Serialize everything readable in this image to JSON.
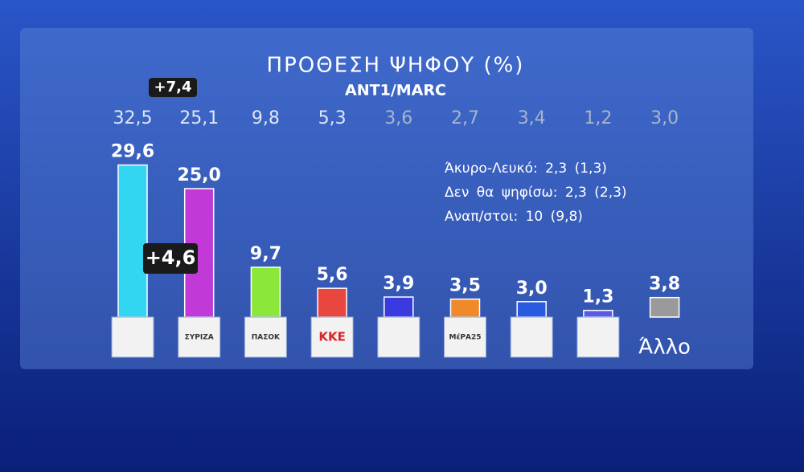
{
  "chart_data": {
    "type": "bar",
    "title": "ΠΡΟΘΕΣΗ ΨΗΦΟΥ (%)",
    "subtitle": "ANT1/MARC",
    "categories": [
      null,
      "ΣΥΡΙΖΑ",
      "ΠΑΣΟΚ",
      "ΚΚΕ",
      null,
      "ΜέΡΑ25",
      null,
      null,
      "Άλλο"
    ],
    "values": [
      29.6,
      25.0,
      9.7,
      5.6,
      3.9,
      3.5,
      3.0,
      1.3,
      3.8
    ],
    "value_labels": [
      "29,6",
      "25,0",
      "9,7",
      "5,6",
      "3,9",
      "3,5",
      "3,0",
      "1,3",
      "3,8"
    ],
    "colors": [
      "#33d6f0",
      "#c13ad8",
      "#8be83a",
      "#e8463f",
      "#3a3ae0",
      "#f08a28",
      "#2a5ae0",
      "#5a5ae8",
      "#9a9a9a"
    ],
    "previous": {
      "values": [
        32.5,
        25.1,
        9.8,
        5.3,
        3.6,
        2.7,
        3.4,
        1.2,
        3.0
      ],
      "value_labels": [
        "32,5",
        "25,1",
        "9,8",
        "5,3",
        "3,6",
        "2,7",
        "3,4",
        "1,2",
        "3,0"
      ]
    },
    "annotations": [
      "+7,4",
      "+4,6"
    ],
    "notes": [
      "Άκυρο-Λευκό: 2,3 (1,3)",
      "Δεν θα ψηφίσω: 2,3 (2,3)",
      "Αναπ/στοι: 10 (9,8)"
    ]
  }
}
